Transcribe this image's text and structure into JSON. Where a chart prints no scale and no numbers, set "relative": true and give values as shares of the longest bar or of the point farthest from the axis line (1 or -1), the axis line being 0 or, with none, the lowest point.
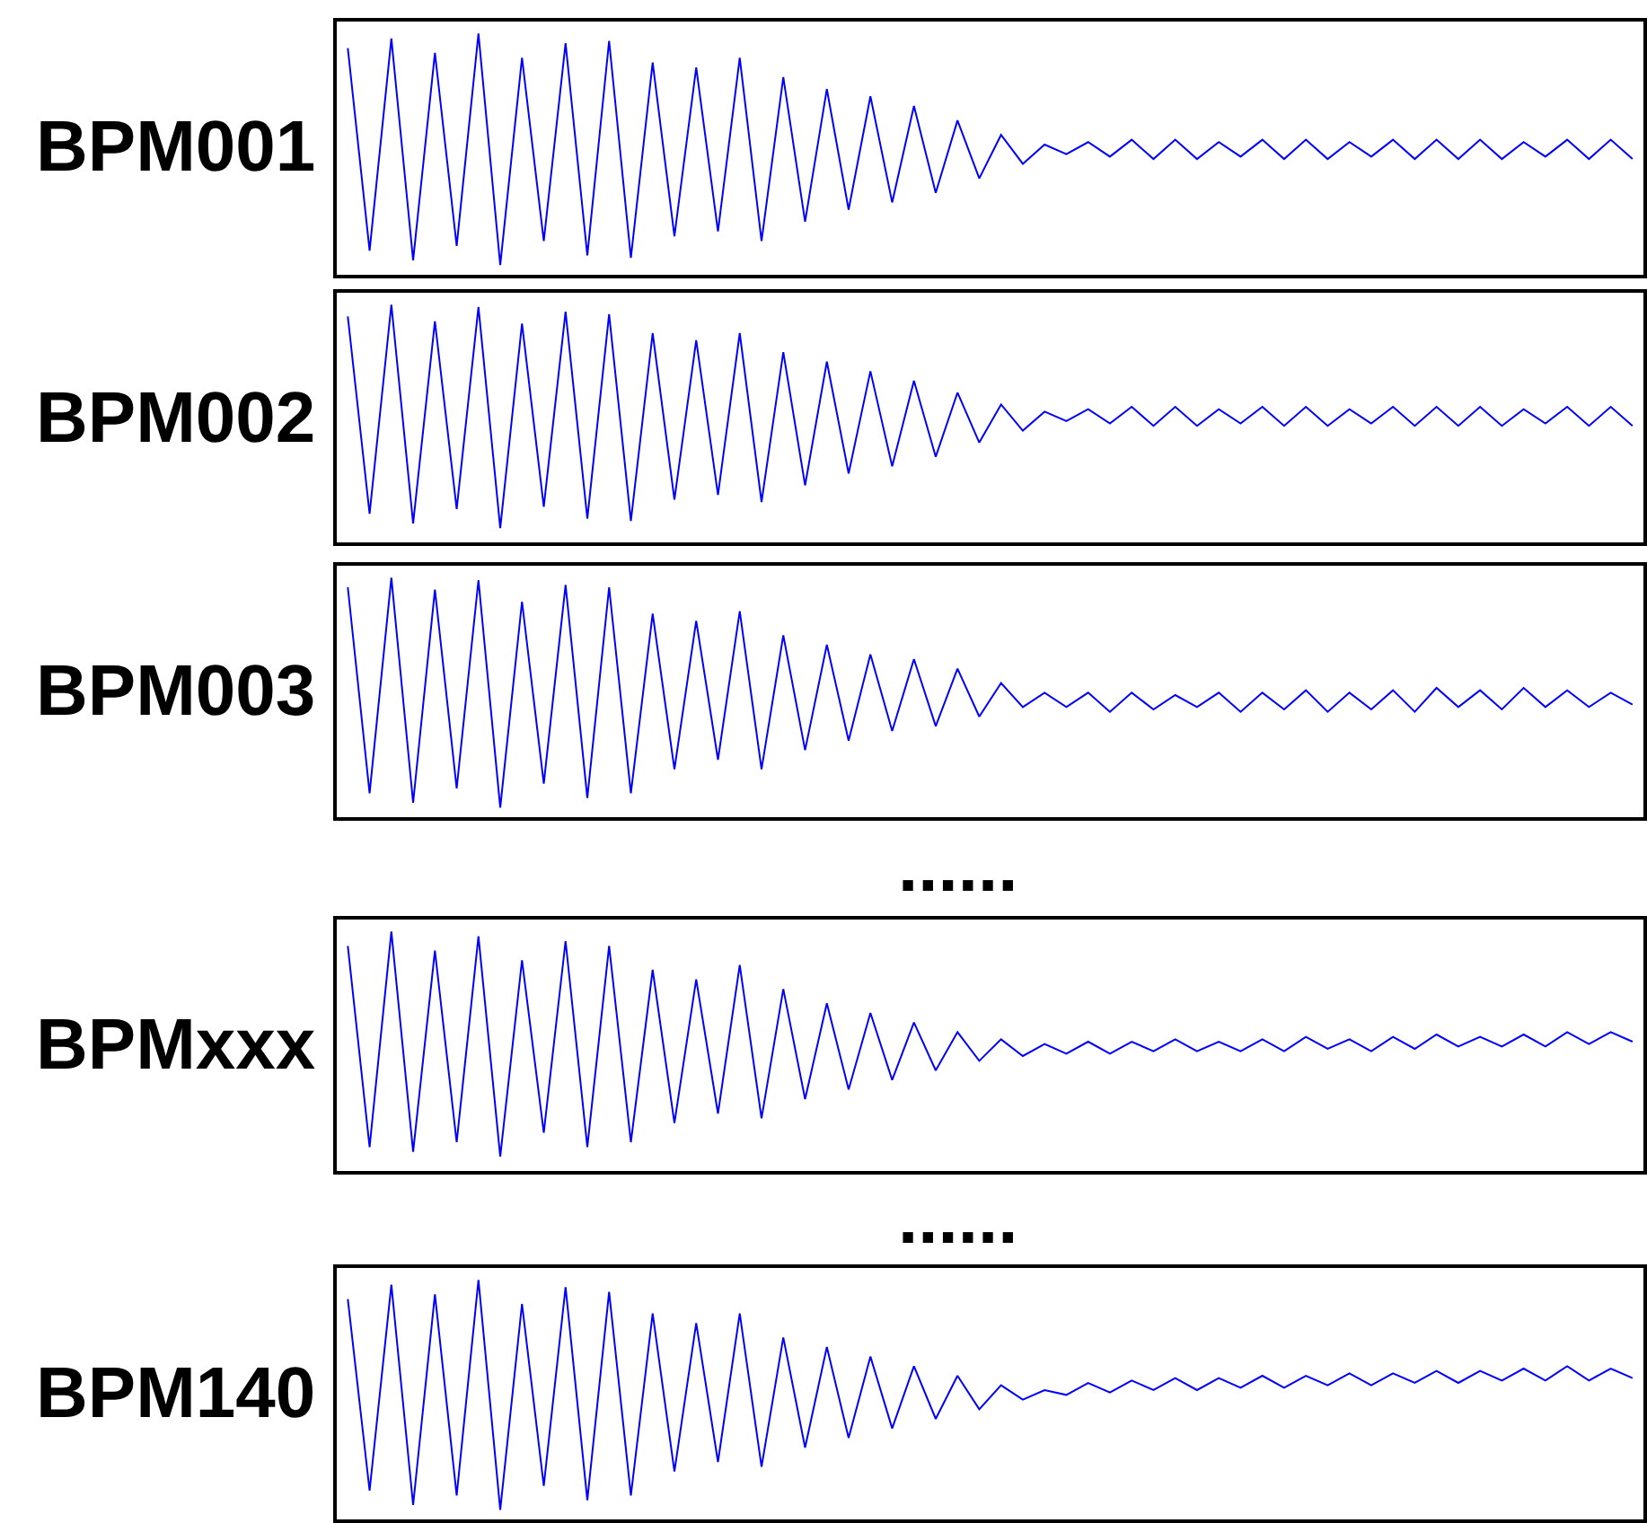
{
  "chart_data": [
    {
      "type": "line",
      "title": "BPM001",
      "relative": true,
      "categories": [
        null,
        null,
        null,
        null,
        null,
        null,
        null,
        null,
        null,
        null,
        null,
        null,
        null,
        null,
        null,
        null,
        null,
        null,
        null,
        null,
        null,
        null,
        null,
        null,
        null,
        null,
        null,
        null,
        null,
        null,
        null,
        null,
        null,
        null,
        null,
        null,
        null,
        null,
        null,
        null,
        null,
        null,
        null,
        null,
        null,
        null,
        null,
        null,
        null,
        null,
        null,
        null,
        null,
        null,
        null,
        null,
        null,
        null,
        null,
        null
      ],
      "series": [
        {
          "color": "#0000ff",
          "values": [
            0.94,
            0.1,
            0.98,
            0.06,
            0.92,
            0.12,
            1.0,
            0.04,
            0.9,
            0.14,
            0.96,
            0.08,
            0.97,
            0.07,
            0.88,
            0.16,
            0.86,
            0.18,
            0.9,
            0.14,
            0.82,
            0.22,
            0.77,
            0.27,
            0.74,
            0.3,
            0.7,
            0.34,
            0.64,
            0.4,
            0.58,
            0.46,
            0.54,
            0.5,
            0.55,
            0.49,
            0.56,
            0.48,
            0.56,
            0.48,
            0.55,
            0.49,
            0.56,
            0.48,
            0.56,
            0.48,
            0.55,
            0.49,
            0.56,
            0.48,
            0.56,
            0.48,
            0.56,
            0.48,
            0.55,
            0.49,
            0.56,
            0.48,
            0.56,
            0.48
          ]
        }
      ]
    },
    {
      "type": "line",
      "title": "BPM002",
      "relative": true,
      "categories": [
        null,
        null,
        null,
        null,
        null,
        null,
        null,
        null,
        null,
        null,
        null,
        null,
        null,
        null,
        null,
        null,
        null,
        null,
        null,
        null,
        null,
        null,
        null,
        null,
        null,
        null,
        null,
        null,
        null,
        null,
        null,
        null,
        null,
        null,
        null,
        null,
        null,
        null,
        null,
        null,
        null,
        null,
        null,
        null,
        null,
        null,
        null,
        null,
        null,
        null,
        null,
        null,
        null,
        null,
        null,
        null,
        null,
        null,
        null,
        null
      ],
      "series": [
        {
          "color": "#0000ff",
          "values": [
            0.95,
            0.12,
            1.0,
            0.08,
            0.93,
            0.14,
            0.99,
            0.06,
            0.92,
            0.15,
            0.97,
            0.1,
            0.96,
            0.09,
            0.88,
            0.18,
            0.85,
            0.2,
            0.88,
            0.17,
            0.8,
            0.24,
            0.76,
            0.29,
            0.72,
            0.32,
            0.68,
            0.36,
            0.63,
            0.42,
            0.58,
            0.47,
            0.55,
            0.51,
            0.56,
            0.5,
            0.57,
            0.49,
            0.57,
            0.49,
            0.56,
            0.5,
            0.57,
            0.49,
            0.57,
            0.49,
            0.56,
            0.5,
            0.57,
            0.49,
            0.57,
            0.49,
            0.57,
            0.49,
            0.56,
            0.5,
            0.57,
            0.49,
            0.57,
            0.49
          ]
        }
      ]
    },
    {
      "type": "line",
      "title": "BPM003",
      "relative": true,
      "categories": [
        null,
        null,
        null,
        null,
        null,
        null,
        null,
        null,
        null,
        null,
        null,
        null,
        null,
        null,
        null,
        null,
        null,
        null,
        null,
        null,
        null,
        null,
        null,
        null,
        null,
        null,
        null,
        null,
        null,
        null,
        null,
        null,
        null,
        null,
        null,
        null,
        null,
        null,
        null,
        null,
        null,
        null,
        null,
        null,
        null,
        null,
        null,
        null,
        null,
        null,
        null,
        null,
        null,
        null,
        null,
        null,
        null,
        null,
        null,
        null
      ],
      "series": [
        {
          "color": "#0000ff",
          "values": [
            0.96,
            0.1,
            1.0,
            0.06,
            0.95,
            0.12,
            0.99,
            0.04,
            0.9,
            0.14,
            0.97,
            0.08,
            0.96,
            0.1,
            0.85,
            0.2,
            0.82,
            0.24,
            0.86,
            0.2,
            0.76,
            0.28,
            0.72,
            0.32,
            0.68,
            0.36,
            0.66,
            0.38,
            0.62,
            0.42,
            0.56,
            0.46,
            0.52,
            0.46,
            0.52,
            0.44,
            0.52,
            0.45,
            0.51,
            0.46,
            0.52,
            0.44,
            0.52,
            0.45,
            0.53,
            0.44,
            0.52,
            0.45,
            0.53,
            0.44,
            0.54,
            0.46,
            0.53,
            0.45,
            0.54,
            0.46,
            0.53,
            0.46,
            0.52,
            0.47
          ]
        }
      ],
      "annotations": [
        "......"
      ]
    },
    {
      "type": "line",
      "title": "BPMxxx",
      "relative": true,
      "categories": [
        null,
        null,
        null,
        null,
        null,
        null,
        null,
        null,
        null,
        null,
        null,
        null,
        null,
        null,
        null,
        null,
        null,
        null,
        null,
        null,
        null,
        null,
        null,
        null,
        null,
        null,
        null,
        null,
        null,
        null,
        null,
        null,
        null,
        null,
        null,
        null,
        null,
        null,
        null,
        null,
        null,
        null,
        null,
        null,
        null,
        null,
        null,
        null,
        null,
        null,
        null,
        null,
        null,
        null,
        null,
        null,
        null,
        null,
        null,
        null
      ],
      "series": [
        {
          "color": "#0000ff",
          "values": [
            0.94,
            0.1,
            1.0,
            0.08,
            0.92,
            0.12,
            0.98,
            0.06,
            0.88,
            0.16,
            0.96,
            0.1,
            0.94,
            0.12,
            0.84,
            0.2,
            0.8,
            0.24,
            0.86,
            0.22,
            0.76,
            0.3,
            0.7,
            0.34,
            0.66,
            0.38,
            0.62,
            0.42,
            0.58,
            0.46,
            0.55,
            0.48,
            0.53,
            0.49,
            0.54,
            0.49,
            0.54,
            0.5,
            0.55,
            0.5,
            0.54,
            0.5,
            0.55,
            0.5,
            0.56,
            0.51,
            0.55,
            0.5,
            0.56,
            0.51,
            0.57,
            0.52,
            0.56,
            0.52,
            0.57,
            0.52,
            0.58,
            0.53,
            0.58,
            0.54
          ]
        }
      ],
      "annotations": [
        "......"
      ]
    },
    {
      "type": "line",
      "title": "BPM140",
      "relative": true,
      "categories": [
        null,
        null,
        null,
        null,
        null,
        null,
        null,
        null,
        null,
        null,
        null,
        null,
        null,
        null,
        null,
        null,
        null,
        null,
        null,
        null,
        null,
        null,
        null,
        null,
        null,
        null,
        null,
        null,
        null,
        null,
        null,
        null,
        null,
        null,
        null,
        null,
        null,
        null,
        null,
        null,
        null,
        null,
        null,
        null,
        null,
        null,
        null,
        null,
        null,
        null,
        null,
        null,
        null,
        null,
        null,
        null,
        null,
        null,
        null,
        null
      ],
      "series": [
        {
          "color": "#0000ff",
          "values": [
            0.92,
            0.12,
            0.98,
            0.06,
            0.94,
            0.1,
            1.0,
            0.04,
            0.9,
            0.14,
            0.97,
            0.08,
            0.95,
            0.1,
            0.86,
            0.2,
            0.82,
            0.24,
            0.86,
            0.22,
            0.76,
            0.3,
            0.72,
            0.34,
            0.68,
            0.38,
            0.64,
            0.42,
            0.6,
            0.46,
            0.56,
            0.5,
            0.54,
            0.52,
            0.57,
            0.53,
            0.58,
            0.54,
            0.59,
            0.54,
            0.59,
            0.55,
            0.6,
            0.55,
            0.6,
            0.56,
            0.61,
            0.56,
            0.61,
            0.57,
            0.62,
            0.57,
            0.62,
            0.58,
            0.63,
            0.58,
            0.64,
            0.58,
            0.63,
            0.59
          ]
        }
      ]
    }
  ]
}
